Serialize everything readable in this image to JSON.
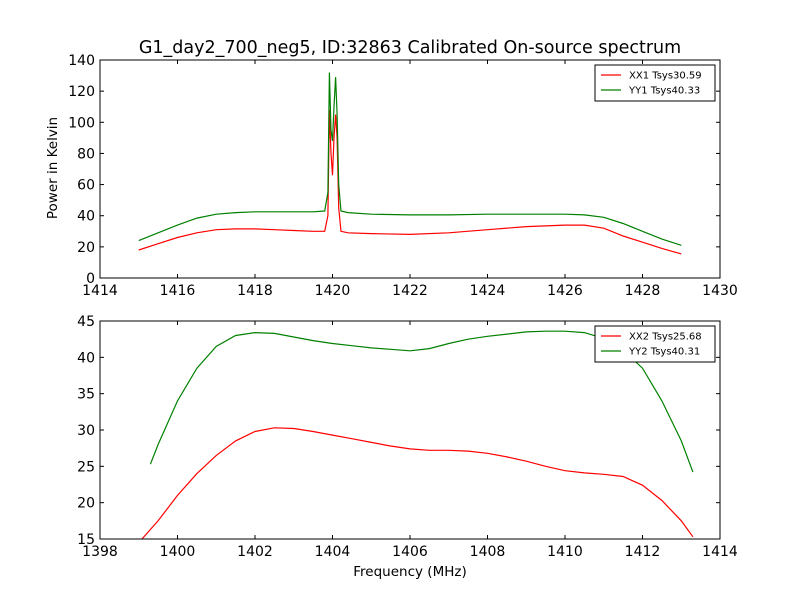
{
  "figure": {
    "title": "G1_day2_700_neg5, ID:32863 Calibrated On-source spectrum",
    "ylabel": "Power in Kelvin",
    "xlabel": "Frequency (MHz)"
  },
  "colors": {
    "red": "#ff0000",
    "green": "#008000",
    "axis": "#000000"
  },
  "chart_data": [
    {
      "type": "line",
      "xlim": [
        1414,
        1430
      ],
      "ylim": [
        0,
        140
      ],
      "xticks": [
        1414,
        1416,
        1418,
        1420,
        1422,
        1424,
        1426,
        1428,
        1430
      ],
      "yticks": [
        0,
        20,
        40,
        60,
        80,
        100,
        120,
        140
      ],
      "legend_position": "top-right",
      "grid": false,
      "series": [
        {
          "name": "XX1 Tsys30.59",
          "color": "#ff0000",
          "x": [
            1415.0,
            1415.5,
            1416.0,
            1416.5,
            1417.0,
            1417.5,
            1418.0,
            1418.5,
            1419.0,
            1419.5,
            1419.8,
            1419.88,
            1419.92,
            1419.96,
            1420.0,
            1420.04,
            1420.08,
            1420.12,
            1420.16,
            1420.22,
            1420.4,
            1421.0,
            1422.0,
            1423.0,
            1424.0,
            1425.0,
            1426.0,
            1426.5,
            1427.0,
            1427.5,
            1428.0,
            1428.5,
            1429.0
          ],
          "y": [
            18,
            22,
            26,
            29,
            31,
            31.5,
            31.5,
            31,
            30.5,
            30,
            30,
            40,
            108,
            80,
            66,
            90,
            105,
            90,
            45,
            30,
            29,
            28.5,
            28,
            29,
            31,
            33,
            34,
            34,
            32,
            27,
            23,
            19,
            15.5
          ]
        },
        {
          "name": "YY1 Tsys40.33",
          "color": "#008000",
          "x": [
            1415.0,
            1415.5,
            1416.0,
            1416.5,
            1417.0,
            1417.5,
            1418.0,
            1418.5,
            1419.0,
            1419.5,
            1419.8,
            1419.88,
            1419.92,
            1419.96,
            1420.0,
            1420.04,
            1420.08,
            1420.12,
            1420.16,
            1420.22,
            1420.4,
            1421.0,
            1422.0,
            1423.0,
            1424.0,
            1425.0,
            1426.0,
            1426.5,
            1427.0,
            1427.5,
            1428.0,
            1428.5,
            1429.0
          ],
          "y": [
            24,
            29,
            34,
            38.5,
            41,
            42,
            42.5,
            42.5,
            42.5,
            42.5,
            43,
            55,
            132,
            95,
            88,
            110,
            129,
            105,
            60,
            43,
            42,
            41,
            40.5,
            40.5,
            41,
            41,
            41,
            40.5,
            39,
            35,
            30,
            25,
            21
          ]
        }
      ]
    },
    {
      "type": "line",
      "xlim": [
        1398,
        1414
      ],
      "ylim": [
        15,
        45
      ],
      "xticks": [
        1398,
        1400,
        1402,
        1404,
        1406,
        1408,
        1410,
        1412,
        1414
      ],
      "yticks": [
        15,
        20,
        25,
        30,
        35,
        40,
        45
      ],
      "legend_position": "top-right",
      "grid": false,
      "series": [
        {
          "name": "XX2 Tsys25.68",
          "color": "#ff0000",
          "x": [
            1399.0,
            1399.5,
            1400.0,
            1400.5,
            1401.0,
            1401.5,
            1402.0,
            1402.5,
            1403.0,
            1403.5,
            1404.0,
            1404.5,
            1405.0,
            1405.5,
            1406.0,
            1406.5,
            1407.0,
            1407.5,
            1408.0,
            1408.5,
            1409.0,
            1409.5,
            1410.0,
            1410.5,
            1411.0,
            1411.5,
            1412.0,
            1412.5,
            1413.0,
            1413.3
          ],
          "y": [
            14.5,
            17.5,
            21,
            24,
            26.5,
            28.5,
            29.8,
            30.3,
            30.2,
            29.8,
            29.3,
            28.8,
            28.3,
            27.8,
            27.4,
            27.2,
            27.2,
            27.1,
            26.8,
            26.3,
            25.7,
            25.0,
            24.4,
            24.1,
            23.9,
            23.6,
            22.4,
            20.3,
            17.5,
            15.3
          ]
        },
        {
          "name": "YY2 Tsys40.31",
          "color": "#008000",
          "x": [
            1399.3,
            1399.5,
            1400.0,
            1400.5,
            1401.0,
            1401.5,
            1402.0,
            1402.5,
            1403.0,
            1403.5,
            1404.0,
            1404.5,
            1405.0,
            1405.5,
            1406.0,
            1406.5,
            1407.0,
            1407.5,
            1408.0,
            1408.5,
            1409.0,
            1409.5,
            1410.0,
            1410.5,
            1411.0,
            1411.5,
            1412.0,
            1412.5,
            1413.0,
            1413.3
          ],
          "y": [
            25.3,
            28,
            34,
            38.5,
            41.5,
            43,
            43.4,
            43.3,
            42.8,
            42.3,
            41.9,
            41.6,
            41.3,
            41.1,
            40.9,
            41.2,
            41.9,
            42.5,
            42.9,
            43.2,
            43.5,
            43.6,
            43.6,
            43.4,
            42.6,
            41,
            38.5,
            34,
            28.5,
            24.2
          ]
        }
      ]
    }
  ]
}
